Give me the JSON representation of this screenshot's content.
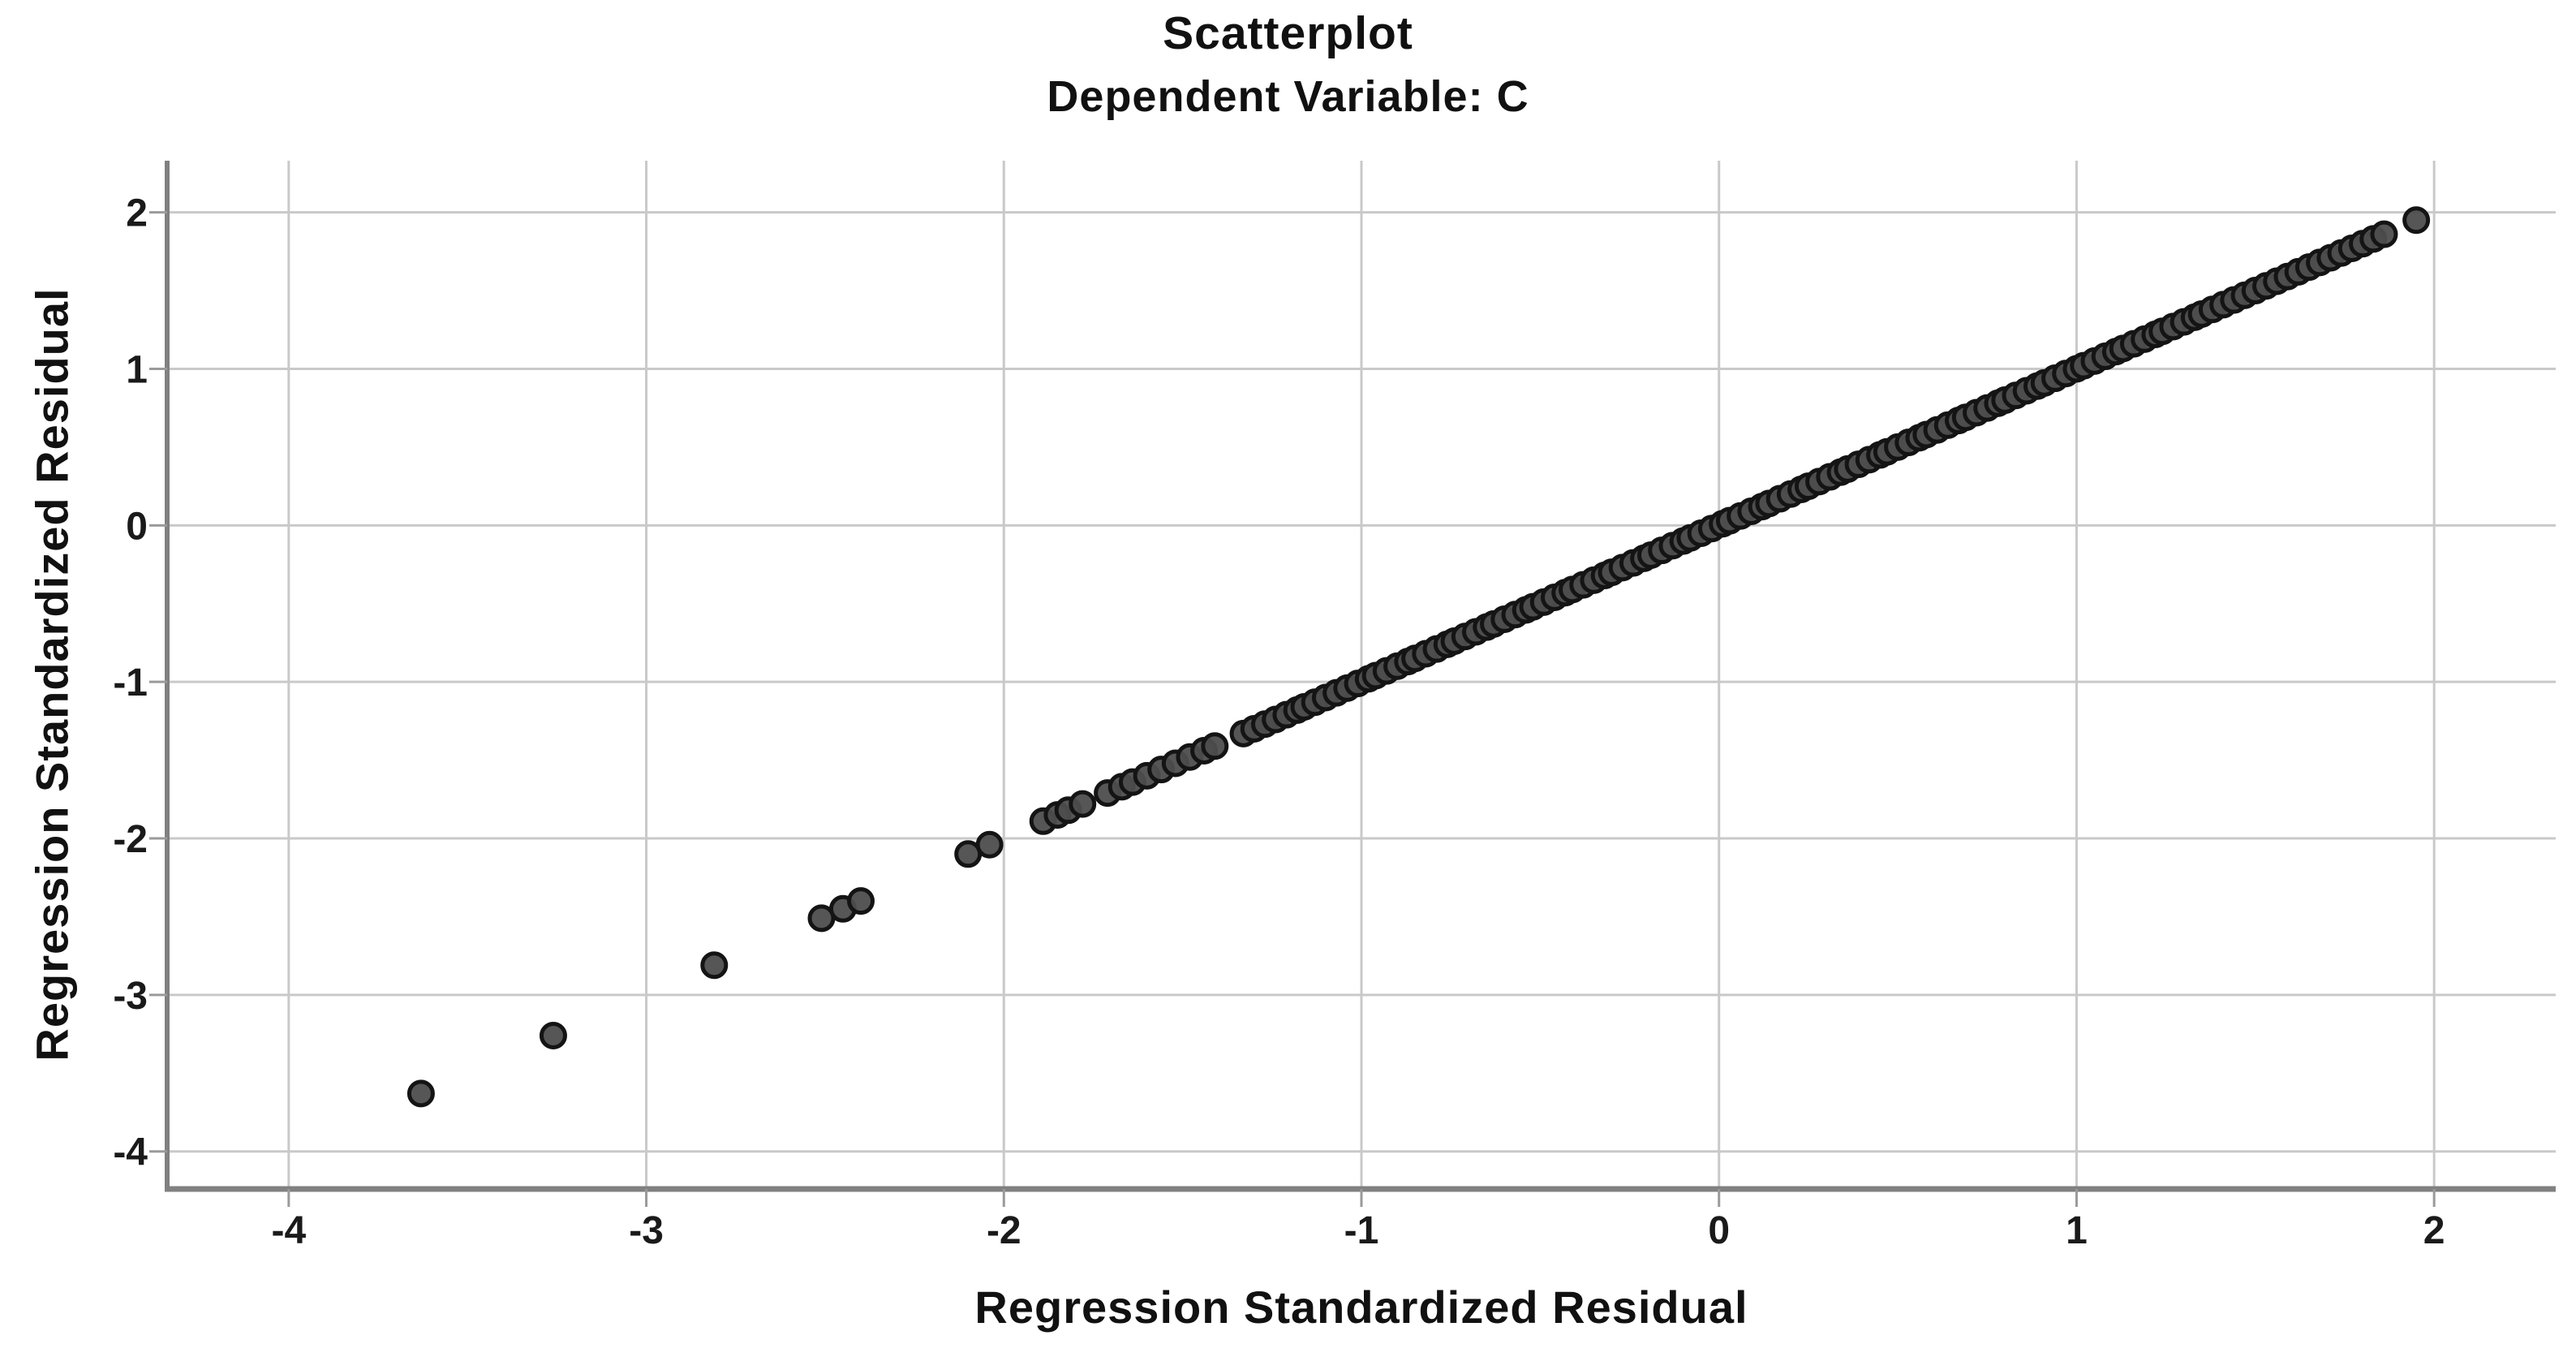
{
  "figure": {
    "title": "Scatterplot",
    "subtitle": "Dependent Variable: C",
    "x_axis_label": "Regression Standardized Residual",
    "y_axis_label": "Regression Standardized Residual"
  },
  "chart_data": {
    "type": "scatter",
    "title": "Scatterplot",
    "subtitle": "Dependent Variable: C",
    "xlabel": "Regression Standardized Residual",
    "ylabel": "Regression Standardized Residual",
    "xlim": [
      -4.34,
      2.34
    ],
    "ylim": [
      -4.24,
      2.33
    ],
    "xticks": [
      -4,
      -3,
      -2,
      -1,
      0,
      1,
      2
    ],
    "yticks": [
      2,
      1,
      0,
      -1,
      -2,
      -3,
      -4
    ],
    "grid": true,
    "legend": "none",
    "relationship": "points lie on identity line y = x (same variable on both axes)",
    "marker": {
      "shape": "circle",
      "fill": "#4d4d4d",
      "stroke": "#141414",
      "radius_px": 14.5,
      "stroke_px": 5
    },
    "colors": {
      "background": "#ffffff",
      "gridline": "#c9c9c9",
      "axis_line": "#808080",
      "tick": "#9a9a9a",
      "text": "#111111"
    },
    "points_x_equals_y": [
      -3.63,
      -3.26,
      -2.81,
      -2.51,
      -2.45,
      -2.4,
      -2.1,
      -2.04,
      -1.89,
      -1.85,
      -1.82,
      -1.78,
      -1.71,
      -1.67,
      -1.64,
      -1.6,
      -1.56,
      -1.52,
      -1.48,
      -1.44,
      -1.41,
      -1.33,
      -1.3,
      -1.27,
      -1.24,
      -1.21,
      -1.18,
      -1.16,
      -1.13,
      -1.1,
      -1.07,
      -1.04,
      -1.01,
      -0.98,
      -0.96,
      -0.93,
      -0.9,
      -0.87,
      -0.85,
      -0.82,
      -0.79,
      -0.76,
      -0.74,
      -0.71,
      -0.68,
      -0.65,
      -0.63,
      -0.6,
      -0.57,
      -0.54,
      -0.52,
      -0.49,
      -0.46,
      -0.43,
      -0.41,
      -0.38,
      -0.35,
      -0.32,
      -0.3,
      -0.27,
      -0.24,
      -0.21,
      -0.19,
      -0.16,
      -0.13,
      -0.1,
      -0.08,
      -0.05,
      -0.02,
      0.01,
      0.03,
      0.06,
      0.09,
      0.12,
      0.14,
      0.17,
      0.2,
      0.23,
      0.25,
      0.28,
      0.31,
      0.34,
      0.36,
      0.39,
      0.42,
      0.45,
      0.47,
      0.5,
      0.53,
      0.56,
      0.58,
      0.61,
      0.64,
      0.67,
      0.69,
      0.72,
      0.75,
      0.78,
      0.8,
      0.83,
      0.86,
      0.89,
      0.91,
      0.94,
      0.97,
      1.0,
      1.02,
      1.05,
      1.08,
      1.11,
      1.13,
      1.16,
      1.19,
      1.22,
      1.24,
      1.27,
      1.3,
      1.33,
      1.35,
      1.38,
      1.41,
      1.44,
      1.47,
      1.5,
      1.53,
      1.56,
      1.59,
      1.62,
      1.65,
      1.68,
      1.71,
      1.74,
      1.77,
      1.8,
      1.83,
      1.86,
      1.95
    ]
  }
}
